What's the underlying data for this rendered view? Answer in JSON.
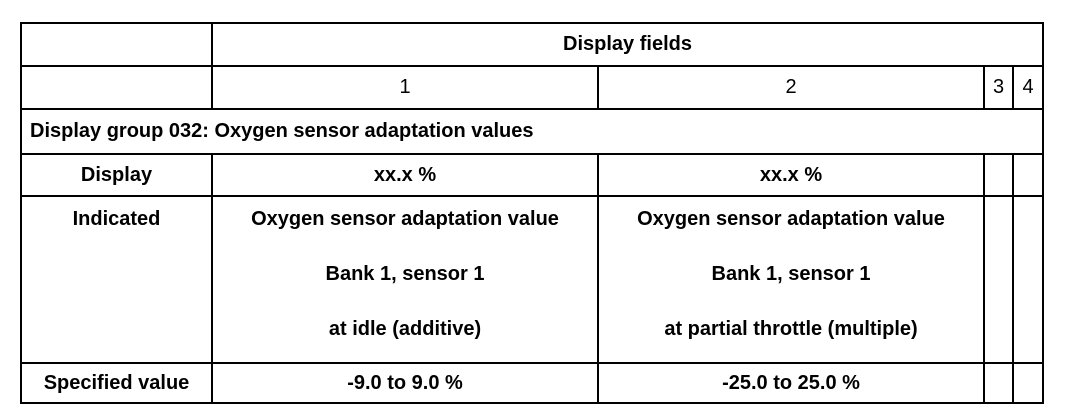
{
  "table": {
    "header": "Display fields",
    "columns": [
      "1",
      "2",
      "3",
      "4"
    ],
    "group": "Display group 032: Oxygen sensor adaptation values",
    "rows": [
      {
        "label": "Display",
        "cells": [
          [
            "xx.x %"
          ],
          [
            "xx.x %"
          ]
        ]
      },
      {
        "label": "Indicated",
        "cells": [
          [
            "Oxygen sensor adaptation value",
            "Bank 1, sensor 1",
            "at idle (additive)"
          ],
          [
            "Oxygen sensor adaptation value",
            "Bank 1, sensor 1",
            "at partial throttle (multiple)"
          ]
        ]
      },
      {
        "label": "Specified value",
        "cells": [
          [
            "-9.0 to 9.0 %"
          ],
          [
            "-25.0 to 25.0 %"
          ]
        ]
      }
    ]
  }
}
